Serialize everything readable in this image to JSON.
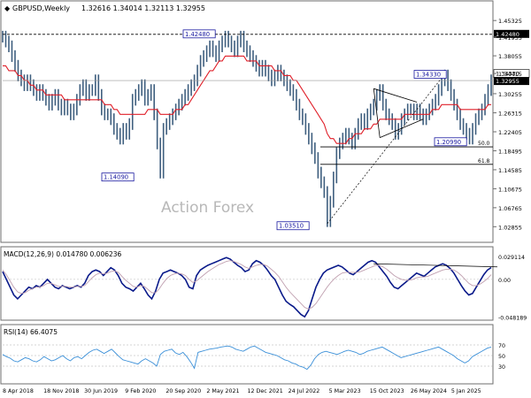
{
  "header": {
    "symbol": "GBPUSD,Weekly",
    "ohlc": "1.32616 1.34014 1.32113 1.32955"
  },
  "watermark": "Action Forex",
  "colors": {
    "candle": "#3f5f7f",
    "ma": "#e0202a",
    "macd": "#0a1a8a",
    "signal": "#c0a0b0",
    "rsi": "#3a8fd8",
    "label_box": "#1a1aa0",
    "last_price_bg": "#000000"
  },
  "chart_data": [
    {
      "type": "line",
      "panel": "price",
      "ylim": [
        1.0,
        1.47
      ],
      "ticks_right": [
        "1.45325",
        "1.41935",
        "1.38055",
        "1.34415",
        "1.30255",
        "1.26315",
        "1.22405",
        "1.18495",
        "1.14585",
        "1.10675",
        "1.06765",
        "1.02855"
      ],
      "x_labels": [
        "8 Apr 2018",
        "18 Nov 2018",
        "30 Jun 2019",
        "9 Feb 2020",
        "20 Sep 2020",
        "2 May 2021",
        "12 Dec 2021",
        "24 Jul 2022",
        "5 Mar 2023",
        "15 Oct 2023",
        "26 May 2024",
        "5 Jan 2025"
      ],
      "current_price_label": "1.32955",
      "top_level_label": "1.42480",
      "level_34330": "1.34330",
      "fib_500": "50.0",
      "fib_618": "61.8",
      "annotations": [
        "1.42480",
        "1.34330",
        "1.20990",
        "1.14090",
        "1.03510"
      ],
      "series": [
        {
          "name": "GBPUSD",
          "values": [
            1.42,
            1.41,
            1.4,
            1.38,
            1.36,
            1.34,
            1.33,
            1.32,
            1.33,
            1.32,
            1.31,
            1.3,
            1.31,
            1.3,
            1.29,
            1.28,
            1.29,
            1.3,
            1.28,
            1.27,
            1.28,
            1.27,
            1.26,
            1.27,
            1.29,
            1.31,
            1.32,
            1.3,
            1.31,
            1.31,
            1.33,
            1.3,
            1.27,
            1.26,
            1.26,
            1.25,
            1.23,
            1.22,
            1.21,
            1.23,
            1.22,
            1.24,
            1.29,
            1.3,
            1.31,
            1.32,
            1.29,
            1.3,
            1.31,
            1.26,
            1.2,
            1.14,
            1.23,
            1.24,
            1.25,
            1.26,
            1.27,
            1.28,
            1.29,
            1.3,
            1.31,
            1.32,
            1.33,
            1.35,
            1.37,
            1.38,
            1.39,
            1.4,
            1.39,
            1.38,
            1.4,
            1.41,
            1.42,
            1.41,
            1.4,
            1.39,
            1.41,
            1.42,
            1.4,
            1.39,
            1.38,
            1.37,
            1.36,
            1.35,
            1.36,
            1.35,
            1.34,
            1.33,
            1.34,
            1.35,
            1.34,
            1.33,
            1.32,
            1.31,
            1.3,
            1.28,
            1.26,
            1.25,
            1.23,
            1.21,
            1.19,
            1.17,
            1.14,
            1.12,
            1.1,
            1.04,
            1.08,
            1.13,
            1.18,
            1.2,
            1.21,
            1.22,
            1.21,
            1.2,
            1.22,
            1.24,
            1.25,
            1.24,
            1.26,
            1.27,
            1.28,
            1.3,
            1.31,
            1.28,
            1.26,
            1.25,
            1.24,
            1.22,
            1.23,
            1.25,
            1.26,
            1.27,
            1.27,
            1.26,
            1.27,
            1.26,
            1.25,
            1.26,
            1.27,
            1.28,
            1.29,
            1.31,
            1.33,
            1.34,
            1.32,
            1.3,
            1.28,
            1.26,
            1.24,
            1.23,
            1.22,
            1.21,
            1.23,
            1.25,
            1.26,
            1.27,
            1.29,
            1.31,
            1.33
          ],
          "ma": [
            1.36,
            1.36,
            1.35,
            1.35,
            1.35,
            1.34,
            1.34,
            1.33,
            1.33,
            1.32,
            1.32,
            1.31,
            1.31,
            1.31,
            1.3,
            1.3,
            1.3,
            1.3,
            1.3,
            1.3,
            1.29,
            1.29,
            1.29,
            1.29,
            1.29,
            1.29,
            1.29,
            1.29,
            1.29,
            1.29,
            1.29,
            1.29,
            1.29,
            1.28,
            1.28,
            1.28,
            1.27,
            1.27,
            1.26,
            1.26,
            1.26,
            1.26,
            1.26,
            1.26,
            1.26,
            1.26,
            1.26,
            1.27,
            1.27,
            1.27,
            1.27,
            1.26,
            1.26,
            1.26,
            1.26,
            1.26,
            1.27,
            1.27,
            1.27,
            1.28,
            1.28,
            1.29,
            1.3,
            1.31,
            1.32,
            1.33,
            1.34,
            1.35,
            1.35,
            1.36,
            1.37,
            1.37,
            1.38,
            1.38,
            1.38,
            1.38,
            1.38,
            1.38,
            1.38,
            1.37,
            1.37,
            1.37,
            1.37,
            1.36,
            1.36,
            1.36,
            1.36,
            1.36,
            1.35,
            1.35,
            1.35,
            1.34,
            1.34,
            1.34,
            1.33,
            1.33,
            1.32,
            1.31,
            1.3,
            1.29,
            1.28,
            1.27,
            1.26,
            1.25,
            1.24,
            1.22,
            1.21,
            1.21,
            1.2,
            1.2,
            1.2,
            1.2,
            1.21,
            1.21,
            1.22,
            1.22,
            1.22,
            1.23,
            1.23,
            1.23,
            1.24,
            1.24,
            1.25,
            1.25,
            1.25,
            1.25,
            1.25,
            1.25,
            1.25,
            1.25,
            1.26,
            1.26,
            1.26,
            1.26,
            1.26,
            1.26,
            1.26,
            1.26,
            1.26,
            1.27,
            1.27,
            1.27,
            1.28,
            1.28,
            1.28,
            1.28,
            1.28,
            1.28,
            1.27,
            1.27,
            1.27,
            1.27,
            1.27,
            1.27,
            1.27,
            1.27,
            1.27,
            1.28,
            1.28
          ]
        }
      ]
    },
    {
      "type": "line",
      "panel": "macd",
      "title": "MACD(12,26,9) 0.014780 0.006236",
      "ylim": [
        -0.05,
        0.035
      ],
      "ticks_right": [
        "0.029114",
        "0.00",
        "-0.048189"
      ],
      "series": [
        {
          "name": "MACD",
          "values": [
            0.01,
            0.0,
            -0.01,
            -0.02,
            -0.025,
            -0.02,
            -0.015,
            -0.01,
            -0.012,
            -0.008,
            -0.01,
            -0.005,
            0.0,
            -0.005,
            -0.01,
            -0.012,
            -0.008,
            -0.01,
            -0.012,
            -0.01,
            -0.008,
            -0.01,
            -0.005,
            0.005,
            0.01,
            0.012,
            0.01,
            0.005,
            0.01,
            0.015,
            0.012,
            0.005,
            -0.005,
            -0.01,
            -0.012,
            -0.015,
            -0.01,
            -0.005,
            -0.012,
            -0.02,
            -0.025,
            -0.015,
            0.0,
            0.008,
            0.01,
            0.012,
            0.01,
            0.008,
            0.005,
            0.0,
            -0.01,
            -0.012,
            0.005,
            0.012,
            0.015,
            0.018,
            0.02,
            0.022,
            0.024,
            0.026,
            0.028,
            0.026,
            0.022,
            0.018,
            0.015,
            0.01,
            0.012,
            0.02,
            0.024,
            0.022,
            0.018,
            0.012,
            0.005,
            0.0,
            -0.01,
            -0.02,
            -0.028,
            -0.032,
            -0.035,
            -0.04,
            -0.045,
            -0.048,
            -0.04,
            -0.025,
            -0.01,
            0.0,
            0.008,
            0.012,
            0.014,
            0.016,
            0.018,
            0.016,
            0.012,
            0.008,
            0.006,
            0.01,
            0.014,
            0.018,
            0.022,
            0.024,
            0.022,
            0.016,
            0.01,
            0.004,
            -0.004,
            -0.01,
            -0.012,
            -0.008,
            -0.004,
            0.0,
            0.004,
            0.008,
            0.006,
            0.004,
            0.008,
            0.012,
            0.016,
            0.018,
            0.02,
            0.018,
            0.014,
            0.008,
            0.0,
            -0.008,
            -0.015,
            -0.02,
            -0.018,
            -0.01,
            -0.002,
            0.006,
            0.012,
            0.015
          ]
        },
        {
          "name": "Signal",
          "values": [
            0.012,
            0.006,
            -0.002,
            -0.01,
            -0.016,
            -0.018,
            -0.017,
            -0.014,
            -0.012,
            -0.01,
            -0.01,
            -0.008,
            -0.005,
            -0.005,
            -0.007,
            -0.009,
            -0.009,
            -0.009,
            -0.01,
            -0.01,
            -0.009,
            -0.009,
            -0.008,
            -0.003,
            0.002,
            0.006,
            0.008,
            0.007,
            0.008,
            0.01,
            0.011,
            0.009,
            0.004,
            -0.001,
            -0.005,
            -0.009,
            -0.01,
            -0.008,
            -0.009,
            -0.013,
            -0.017,
            -0.017,
            -0.012,
            -0.005,
            0.001,
            0.005,
            0.007,
            0.008,
            0.007,
            0.005,
            0.0,
            -0.004,
            -0.002,
            0.002,
            0.006,
            0.01,
            0.013,
            0.016,
            0.019,
            0.021,
            0.023,
            0.024,
            0.023,
            0.021,
            0.019,
            0.016,
            0.014,
            0.016,
            0.018,
            0.019,
            0.019,
            0.017,
            0.013,
            0.009,
            0.004,
            -0.003,
            -0.01,
            -0.016,
            -0.021,
            -0.026,
            -0.031,
            -0.036,
            -0.038,
            -0.036,
            -0.031,
            -0.024,
            -0.017,
            -0.01,
            -0.004,
            0.001,
            0.005,
            0.008,
            0.009,
            0.009,
            0.009,
            0.009,
            0.01,
            0.012,
            0.014,
            0.016,
            0.018,
            0.018,
            0.016,
            0.013,
            0.009,
            0.005,
            0.002,
            0.0,
            -0.001,
            -0.001,
            0.0,
            0.002,
            0.003,
            0.003,
            0.004,
            0.006,
            0.008,
            0.01,
            0.012,
            0.013,
            0.013,
            0.012,
            0.009,
            0.005,
            0.0,
            -0.005,
            -0.008,
            -0.008,
            -0.006,
            -0.003,
            0.001,
            0.006
          ]
        }
      ]
    },
    {
      "type": "line",
      "panel": "rsi",
      "title": "RSI(14) 66.4075",
      "ylim": [
        0,
        100
      ],
      "ticks_right": [
        "70",
        "50",
        "30"
      ],
      "series": [
        {
          "name": "RSI",
          "values": [
            52,
            48,
            45,
            40,
            38,
            42,
            46,
            44,
            40,
            38,
            42,
            48,
            44,
            40,
            42,
            46,
            50,
            44,
            40,
            46,
            48,
            44,
            50,
            56,
            60,
            62,
            58,
            54,
            58,
            62,
            55,
            48,
            42,
            40,
            38,
            36,
            34,
            40,
            44,
            40,
            36,
            30,
            52,
            58,
            60,
            62,
            55,
            52,
            56,
            48,
            38,
            26,
            56,
            58,
            60,
            62,
            63,
            64,
            66,
            67,
            68,
            66,
            62,
            60,
            58,
            62,
            66,
            68,
            64,
            60,
            56,
            54,
            52,
            50,
            46,
            42,
            40,
            36,
            34,
            30,
            28,
            24,
            32,
            44,
            52,
            56,
            58,
            56,
            54,
            52,
            55,
            58,
            60,
            58,
            56,
            52,
            54,
            58,
            60,
            62,
            64,
            66,
            62,
            58,
            54,
            50,
            46,
            48,
            50,
            52,
            54,
            56,
            58,
            60,
            62,
            64,
            66,
            62,
            58,
            54,
            50,
            44,
            40,
            36,
            40,
            48,
            52,
            56,
            60,
            64,
            66
          ]
        }
      ]
    }
  ]
}
